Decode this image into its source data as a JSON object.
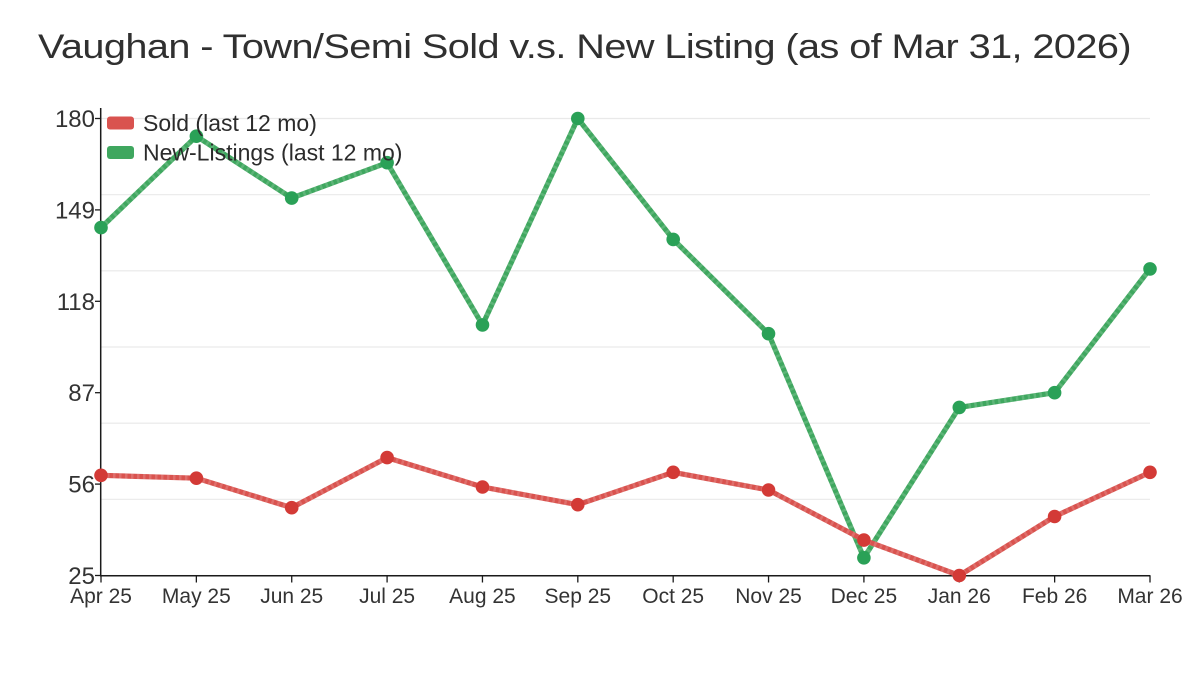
{
  "title": "Vaughan - Town/Semi Sold v.s. New Listing (as of Mar 31, 2026)",
  "chart_data": {
    "type": "line",
    "categories": [
      "Apr 25",
      "May 25",
      "Jun 25",
      "Jul 25",
      "Aug 25",
      "Sep 25",
      "Oct 25",
      "Nov 25",
      "Dec 25",
      "Jan 26",
      "Feb 26",
      "Mar 26"
    ],
    "series": [
      {
        "id": "sold",
        "name": "Sold (last 12 mo)",
        "color": "#d9534f",
        "marker_color": "#d33a36",
        "values": [
          59,
          58,
          48,
          65,
          55,
          49,
          60,
          54,
          37,
          25,
          45,
          60
        ]
      },
      {
        "id": "new-listings",
        "name": "New-Listings (last 12 mo)",
        "color": "#3fa75f",
        "marker_color": "#2aa157",
        "values": [
          143,
          174,
          153,
          165,
          110,
          180,
          139,
          107,
          31,
          82,
          87,
          129
        ]
      }
    ],
    "xlabel": "",
    "ylabel": "",
    "yticks": [
      25,
      56,
      87,
      118,
      149,
      180
    ],
    "ylim": [
      25,
      180
    ],
    "grid": "horizontal",
    "gridline_count": 7,
    "gridline_color": "#e9e9e9",
    "axis_color": "#1a1a1a",
    "legend_position": "top-left-inside"
  }
}
